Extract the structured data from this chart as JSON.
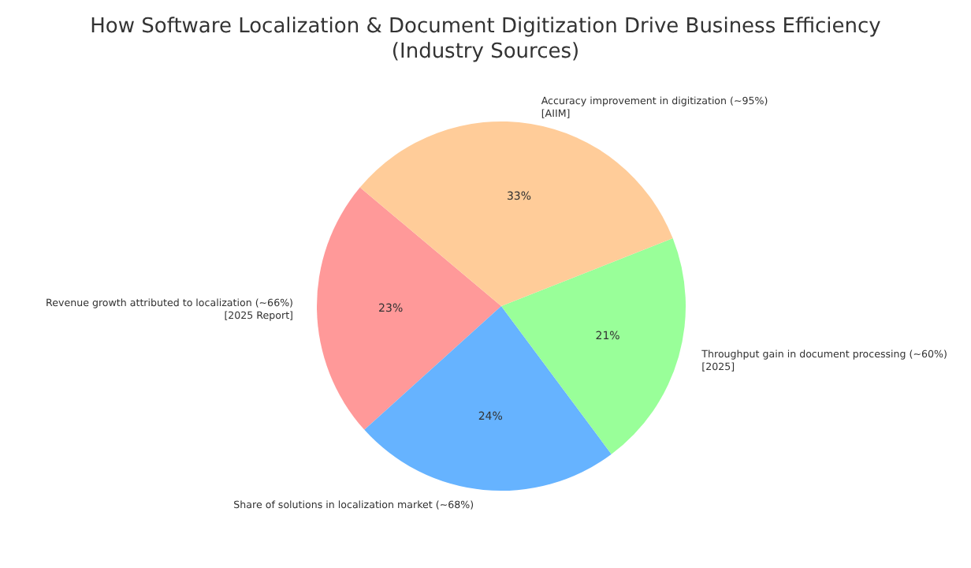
{
  "chart_data": {
    "type": "pie",
    "title": "How Software Localization & Document Digitization Drive Business Efficiency\n(Industry Sources)",
    "categories": [
      "Revenue growth attributed to localization (~66%)\n[2025 Report]",
      "Share of solutions in localization market (~68%)",
      "Throughput gain in document processing (~60%)\n[2025]",
      "Accuracy improvement in digitization (~95%)\n[AIIM]"
    ],
    "values": [
      22.8,
      23.5,
      20.8,
      32.9
    ],
    "value_labels": [
      "23%",
      "24%",
      "21%",
      "33%"
    ],
    "colors": [
      "#ff9999",
      "#66b3ff",
      "#99ff99",
      "#ffcc99"
    ],
    "legend": false
  }
}
